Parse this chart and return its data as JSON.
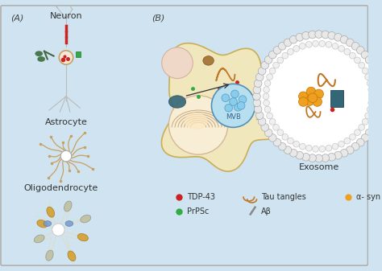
{
  "background_color": "#cfe4f0",
  "border_color": "#b0b0b0",
  "panel_A_label": "(A)",
  "panel_B_label": "(B)",
  "neuron_label": "Neuron",
  "astrocyte_label": "Astrocyte",
  "oligodendrocyte_label": "Oligodendrocyte",
  "exosome_label": "Exosome",
  "mvb_label": "MVB",
  "cell_color": "#f5e8b8",
  "cell_border": "#c8a84b",
  "nucleus_color": "#f0d0b0",
  "nucleus_glow": "#fde8c8",
  "mvb_color": "#a8d4ee",
  "mvb_border": "#5090b8",
  "exosome_bead_face": "#e4e4e4",
  "exosome_bead_edge": "#aaaaaa",
  "exosome_inner_face": "#f8f8f8",
  "exosome_inner_edge": "#cccccc",
  "tau_color": "#c07828",
  "alpha_syn_color": "#f0a020",
  "tdp43_color": "#cc2222",
  "prpsc_color": "#33aa44",
  "abeta_color": "#888888",
  "blue_rect_color": "#336688",
  "font_size_label": 8,
  "font_size_panel": 8,
  "font_size_mvb": 6,
  "font_size_legend": 7
}
